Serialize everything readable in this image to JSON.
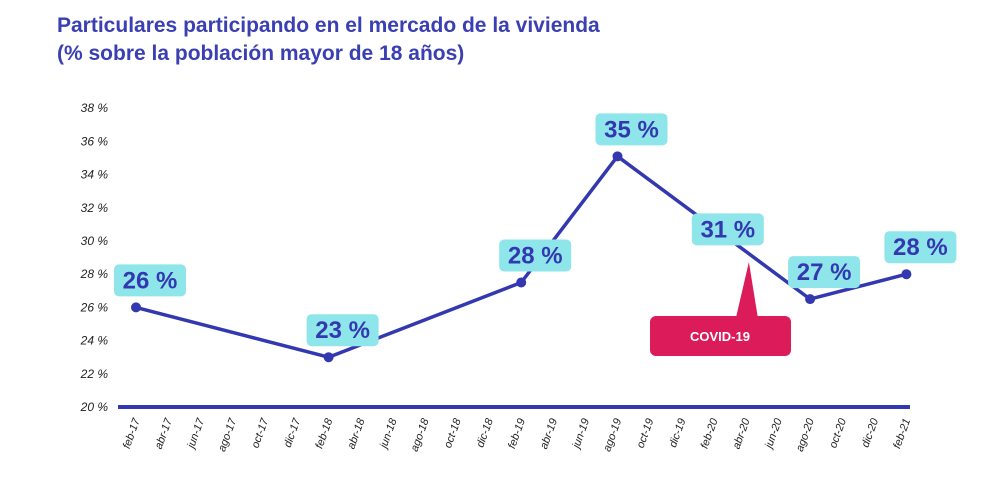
{
  "title_line1": "Particulares participando en el mercado de la vivienda",
  "title_line2": "(% sobre la población mayor de 18 años)",
  "colors": {
    "title": "#3a3fb3",
    "line": "#3338b0",
    "label_bg": "#8ee6ea",
    "covid": "#dc1b5a",
    "axis": "#3338b0"
  },
  "chart_data": {
    "type": "line",
    "title": "Particulares participando en el mercado de la vivienda (% sobre la población mayor de 18 años)",
    "categories": [
      "feb-17",
      "abr-17",
      "jun-17",
      "ago-17",
      "oct-17",
      "dic-17",
      "feb-18",
      "abr-18",
      "jun-18",
      "ago-18",
      "oct-18",
      "dic-18",
      "feb-19",
      "abr-19",
      "jun-19",
      "ago-19",
      "oct-19",
      "dic-19",
      "feb-20",
      "abr-20",
      "jun-20",
      "ago-20",
      "oct-20",
      "dic-20",
      "feb-21"
    ],
    "y_ticks": [
      "20 %",
      "22 %",
      "24 %",
      "26 %",
      "28 %",
      "30 %",
      "32 %",
      "34 %",
      "36 %",
      "38 %"
    ],
    "ylim": [
      20,
      38
    ],
    "series": [
      {
        "points": [
          {
            "x": "feb-17",
            "y": 26,
            "label": "26 %"
          },
          {
            "x": "feb-18",
            "y": 23,
            "label": "23 %"
          },
          {
            "x": "feb-19",
            "y": 27.5,
            "label": "28 %"
          },
          {
            "x": "ago-19",
            "y": 35.1,
            "label": "35 %"
          },
          {
            "x": "ago-20",
            "y": 26.5,
            "label": "27 %"
          },
          {
            "x": "feb-21",
            "y": 28,
            "label": "28 %"
          }
        ]
      }
    ],
    "extra_labels": [
      {
        "x": "feb-20",
        "y": 30.7,
        "label": "31 %"
      }
    ],
    "annotation": {
      "text": "COVID-19",
      "x": "abr-20"
    }
  }
}
